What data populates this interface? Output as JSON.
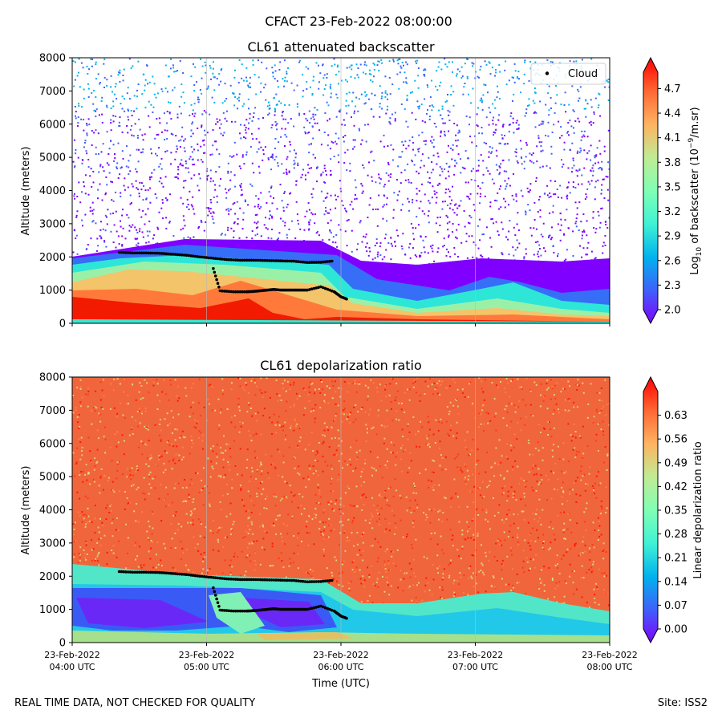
{
  "suptitle": "CFACT 23-Feb-2022 08:00:00",
  "footer": {
    "left": "REAL TIME DATA, NOT CHECKED FOR QUALITY",
    "right": "Site: ISS2"
  },
  "colors": {
    "cloud_marker": "#000000",
    "colormap": [
      "#7f00ff",
      "#3f61fa",
      "#01b3ed",
      "#41f2d4",
      "#80ffb4",
      "#c1eb94",
      "#feb360",
      "#ff6733",
      "#ff0000"
    ]
  },
  "chart_data": [
    {
      "type": "heatmap",
      "title": "CL61 attenuated backscatter",
      "ylabel": "Altitude (meters)",
      "xlabel": "",
      "ylim": [
        0,
        8000
      ],
      "yticks": [
        "0",
        "1000",
        "2000",
        "3000",
        "4000",
        "5000",
        "6000",
        "7000",
        "8000"
      ],
      "colorbar": {
        "label": "Log10 of backscatter (10^-9/m.sr)",
        "range": [
          2.0,
          4.9
        ],
        "ticks": [
          "2.0",
          "2.3",
          "2.6",
          "2.9",
          "3.2",
          "3.5",
          "3.8",
          "4.1",
          "4.4",
          "4.7"
        ]
      },
      "legend": {
        "label": "Cloud",
        "position": "upper-right"
      },
      "cloud_base_series": {
        "name": "Cloud",
        "x_hours": [
          0.35,
          0.45,
          0.55,
          0.65,
          0.75,
          0.85,
          0.95,
          1.05,
          1.15,
          1.25,
          1.35,
          1.45,
          1.55,
          1.65,
          1.75,
          1.85,
          1.95
        ],
        "y_m": [
          2140,
          2120,
          2120,
          2110,
          2080,
          2050,
          2000,
          1960,
          1920,
          1900,
          1900,
          1890,
          1880,
          1870,
          1830,
          1840,
          1880
        ]
      },
      "lower_cloud_series": {
        "x_hours": [
          1.05,
          1.1,
          1.2,
          1.3,
          1.35,
          1.4,
          1.45,
          1.5,
          1.55,
          1.6,
          1.65,
          1.7,
          1.75,
          1.85,
          1.95,
          2.0,
          2.05
        ],
        "y_m": [
          1650,
          980,
          950,
          950,
          960,
          980,
          1000,
          1020,
          1000,
          1000,
          1000,
          1000,
          1000,
          1100,
          950,
          800,
          720
        ]
      }
    },
    {
      "type": "heatmap",
      "title": "CL61 depolarization ratio",
      "ylabel": "Altitude (meters)",
      "xlabel": "Time (UTC)",
      "ylim": [
        0,
        8000
      ],
      "yticks": [
        "0",
        "1000",
        "2000",
        "3000",
        "4000",
        "5000",
        "6000",
        "7000",
        "8000"
      ],
      "xticks": [
        {
          "date": "23-Feb-2022",
          "time": "04:00 UTC"
        },
        {
          "date": "23-Feb-2022",
          "time": "05:00 UTC"
        },
        {
          "date": "23-Feb-2022",
          "time": "06:00 UTC"
        },
        {
          "date": "23-Feb-2022",
          "time": "07:00 UTC"
        },
        {
          "date": "23-Feb-2022",
          "time": "08:00 UTC"
        }
      ],
      "colorbar": {
        "label": "Linear depolarization ratio",
        "range": [
          0.0,
          0.7
        ],
        "ticks": [
          "0.00",
          "0.07",
          "0.14",
          "0.21",
          "0.28",
          "0.35",
          "0.42",
          "0.49",
          "0.56",
          "0.63"
        ]
      }
    }
  ]
}
